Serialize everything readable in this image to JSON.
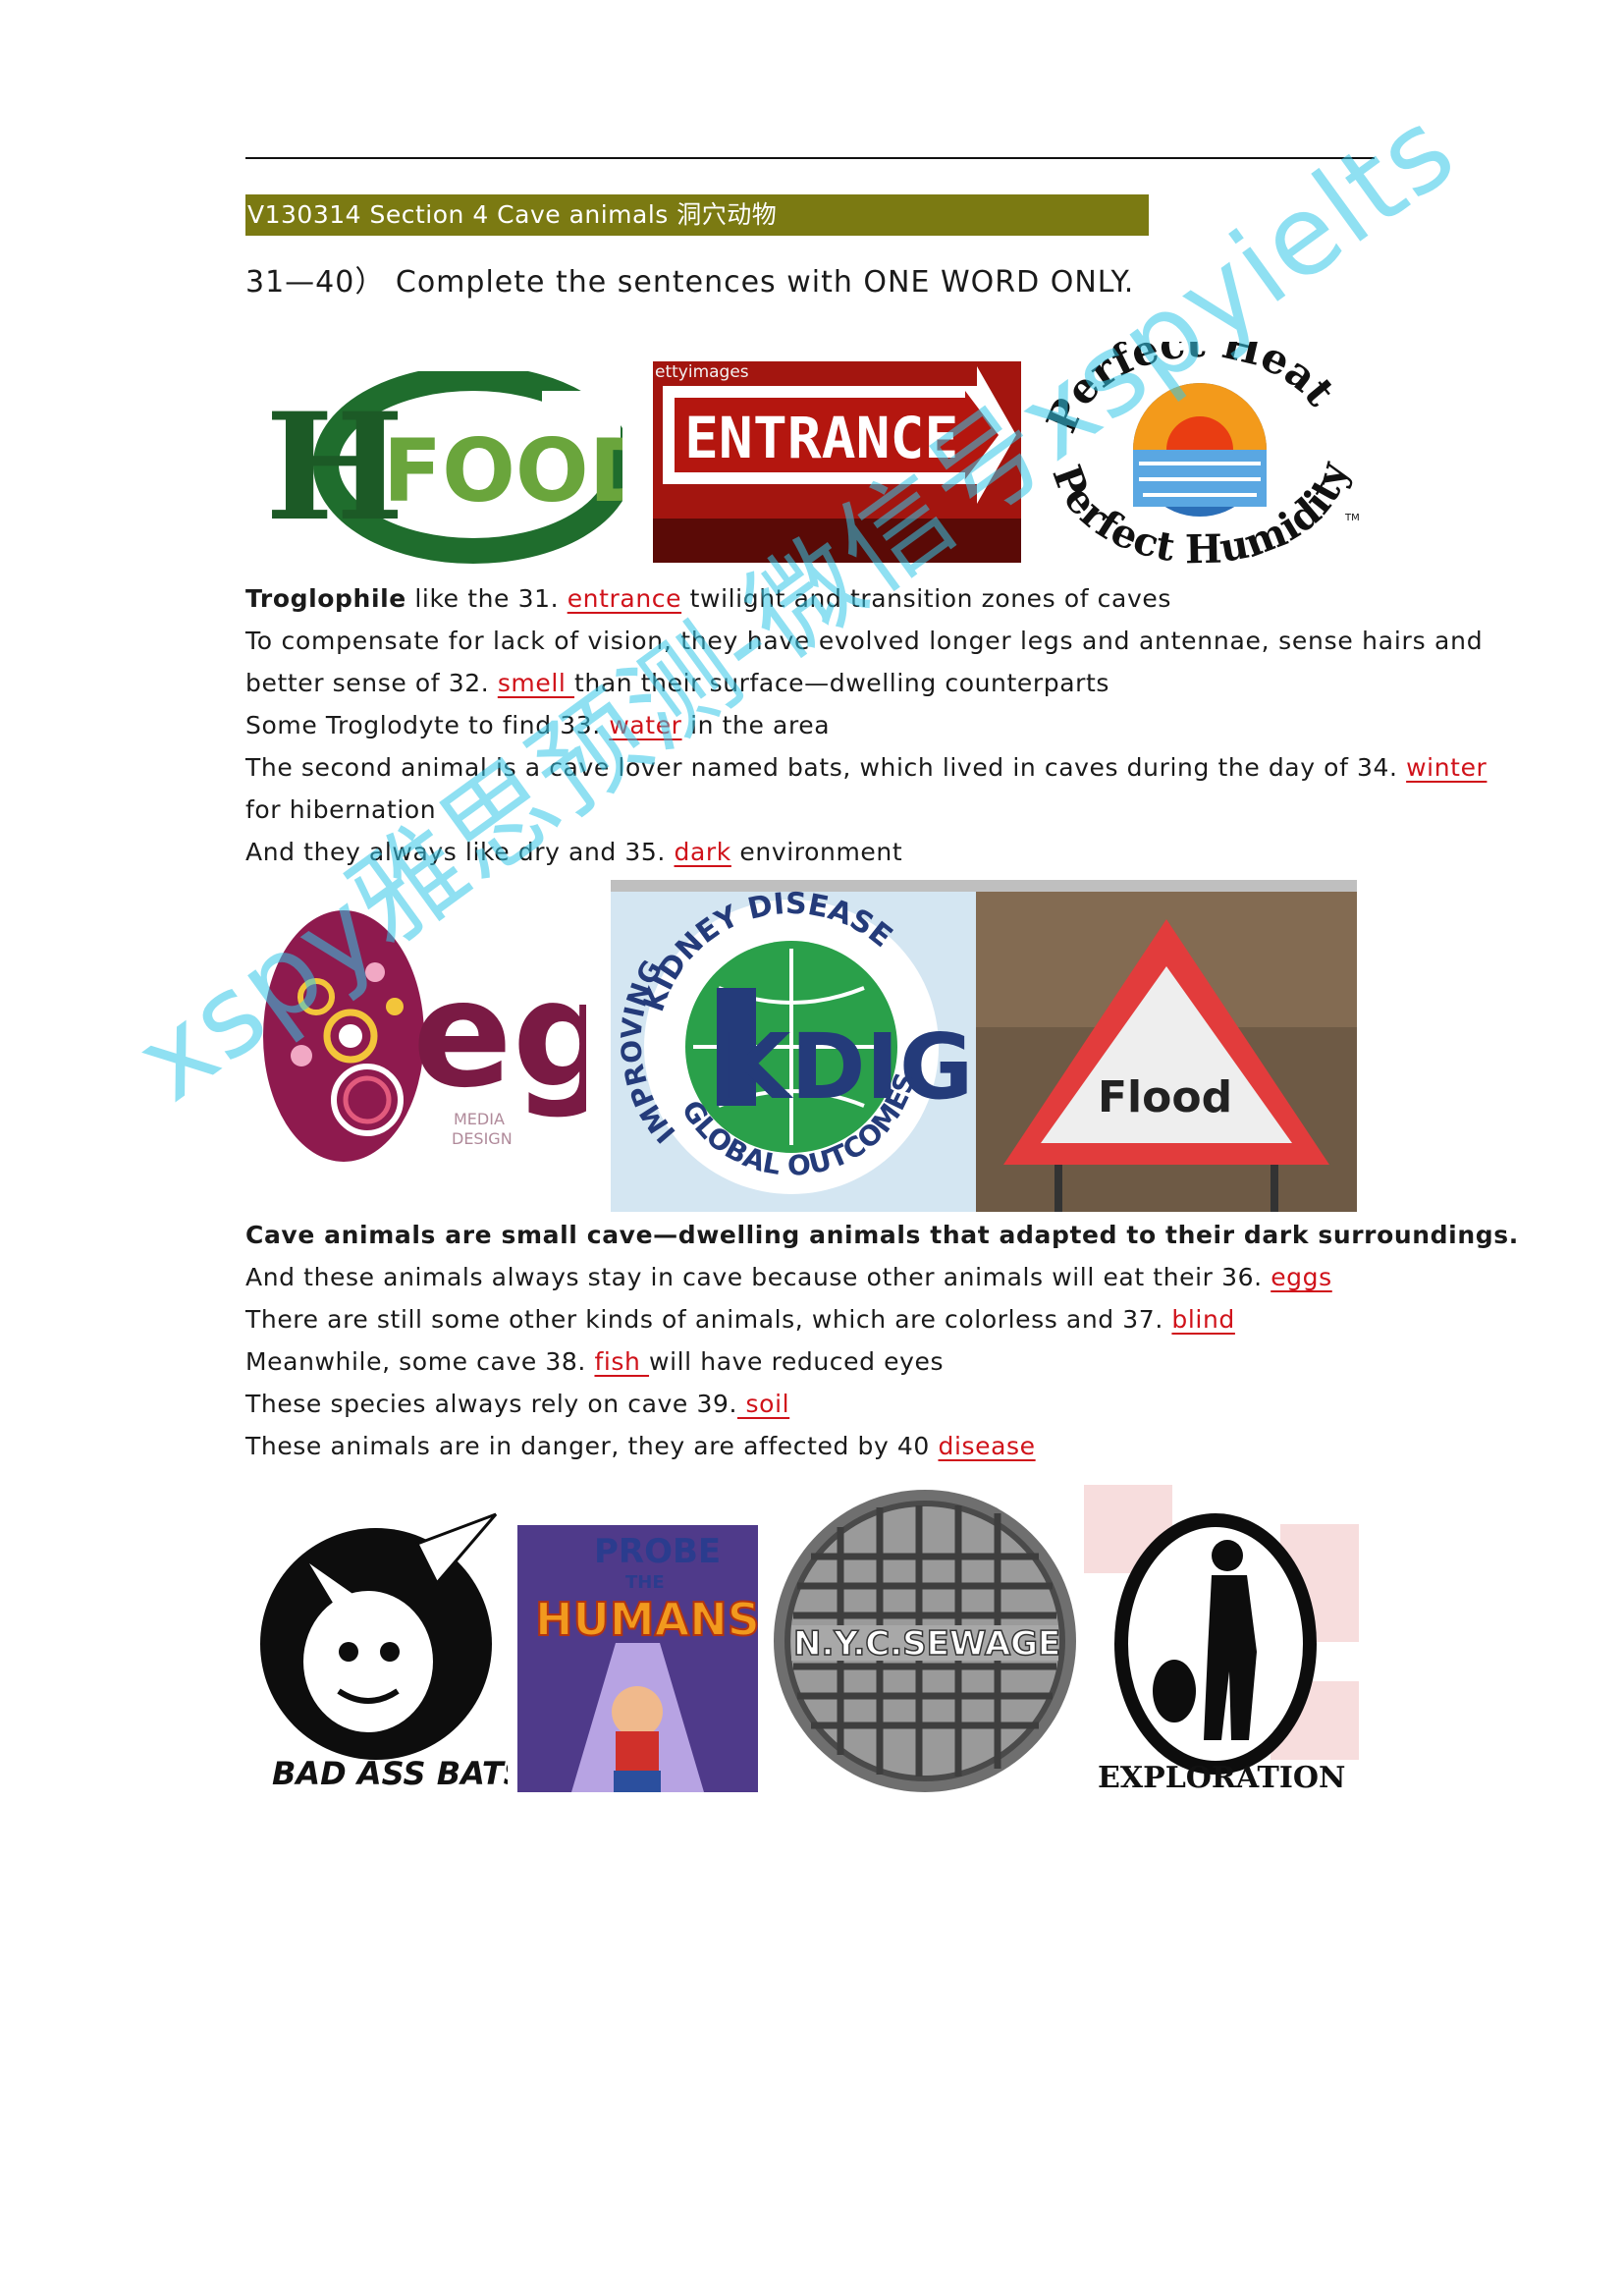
{
  "header": {
    "title": "V130314 Section 4 Cave animals 洞穴动物",
    "instruction": "31—40）  Complete the sentences with ONE WORD ONLY."
  },
  "images_row1": {
    "hcfood": {
      "letters": "H",
      "word": "FOOD"
    },
    "entrance": {
      "tag": "ettyimages",
      "word": "ENTRANCE"
    },
    "perfect": {
      "top": "Perfect Heat",
      "bottom": "Perfect Humidity",
      "tm": "TM"
    }
  },
  "section1": {
    "l1": {
      "bold": "Troglophile",
      "pre": " like the 31. ",
      "ans": "entrance",
      "post": " twilight and transition zones of caves"
    },
    "l2": "To compensate for lack of vision, they have evolved longer legs and antennae, sense hairs and",
    "l3": {
      "pre": "better sense of 32. ",
      "ans": "smell ",
      "post": "than their surface—dwelling counterparts"
    },
    "l4": {
      "pre": "Some Troglodyte to find 33. ",
      "ans": "water",
      "post": " in the area"
    },
    "l5": {
      "pre": "The second animal is a cave lover named bats, which lived in caves during the day of 34. ",
      "ans": "winter"
    },
    "l6": "for hibernation",
    "l7": {
      "pre": "And they always like dry and 35. ",
      "ans": "dark",
      "post": " environment"
    }
  },
  "images_row2": {
    "egg": {
      "word": "egg",
      "sub1": "MEDIA",
      "sub2": "DESIGN"
    },
    "kdigo": {
      "ring_top": "KIDNEY DISEASE",
      "ring_left": "IMPROVING",
      "ring_bottom": "GLOBAL OUTCOMES",
      "center": "KDIGO"
    },
    "flood": {
      "word": "Flood"
    }
  },
  "section2": {
    "l1": {
      "bold": "Cave animals are small cave—dwelling animals that adapted to their dark surroundings."
    },
    "l2": {
      "pre": "And these animals always stay in cave because other animals will eat their 36. ",
      "ans": "eggs"
    },
    "l3": {
      "pre": "There are still some other kinds of animals, which are colorless and 37. ",
      "ans": "blind"
    },
    "l4": {
      "pre": "Meanwhile, some cave 38. ",
      "ans": "fish ",
      "post": "will have reduced eyes"
    },
    "l5": {
      "pre": "These species always rely on cave 39.",
      "ans": " soil"
    },
    "l6": {
      "pre": "These animals are in danger, they are affected by 40 ",
      "ans": "disease"
    }
  },
  "images_row3": {
    "bats": {
      "caption": "BAD ASS BATS"
    },
    "probe": {
      "line1": "PROBE",
      "line2": "THE",
      "line3": "HUMANS"
    },
    "manhole": {
      "text": "N.Y.C.SEWAGE"
    },
    "exploration": {
      "caption": "EXPLORATION"
    }
  },
  "watermark": {
    "text": "xspy雅思预测-微信号xspyielts"
  },
  "colors": {
    "header_bar": "#7b7a12",
    "answer": "#d0121a",
    "watermark": "#35c8e8"
  }
}
